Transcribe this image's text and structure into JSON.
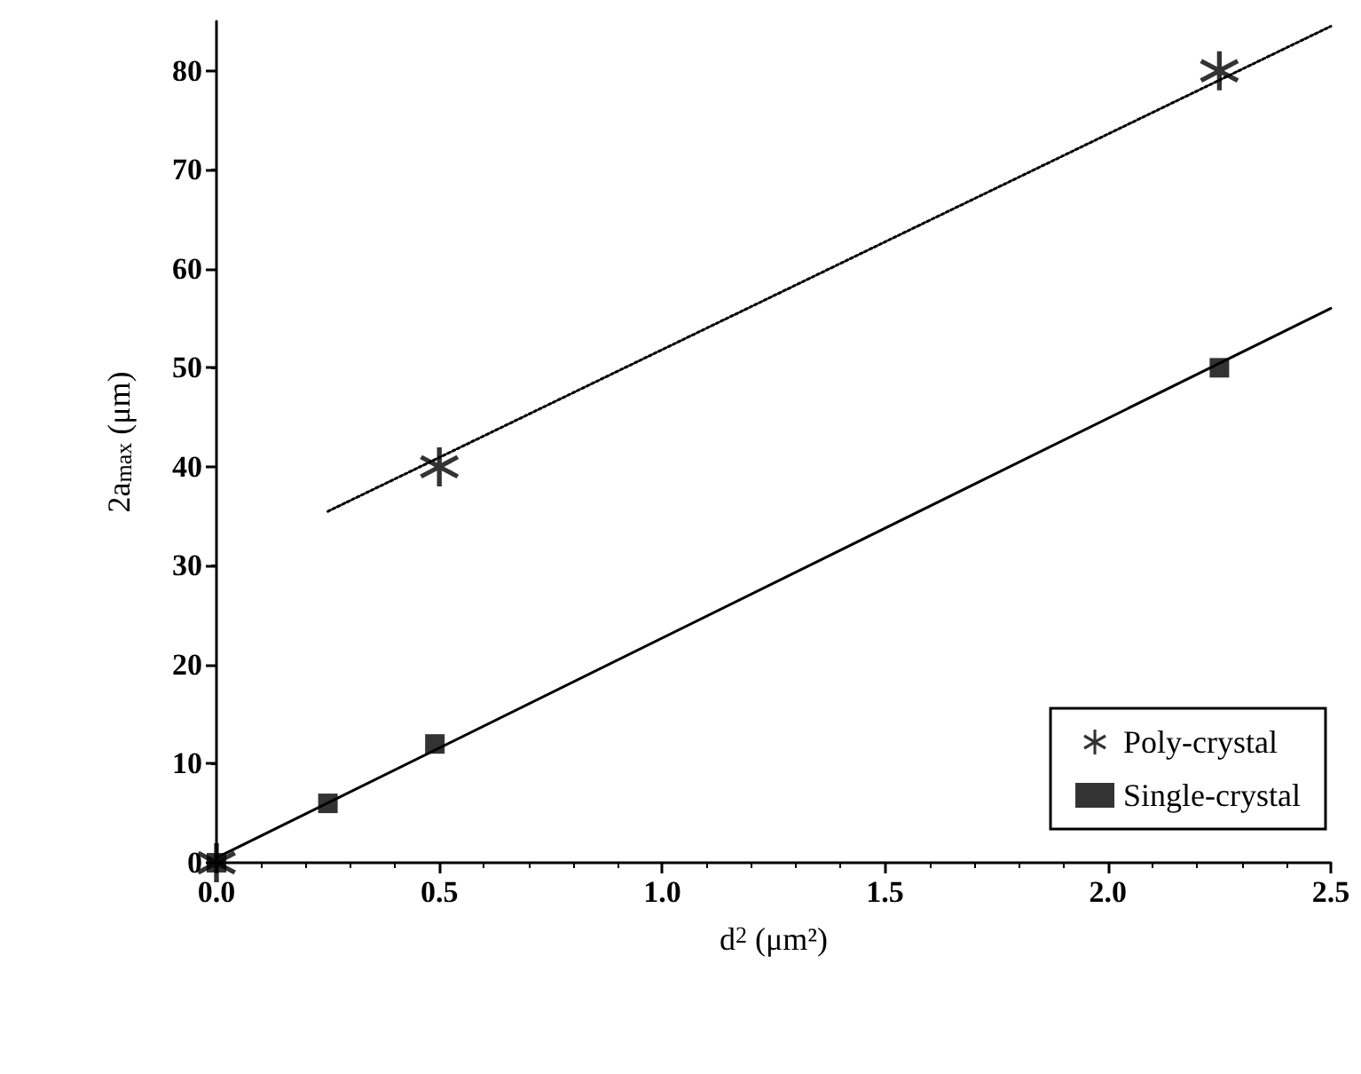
{
  "chart_data": {
    "type": "scatter",
    "xlabel": "d$^{2}$ (μm²)",
    "ylabel": "2a$_{max}$ (μm)",
    "xlim": [
      0,
      2.5
    ],
    "ylim": [
      0,
      85
    ],
    "xticks": [
      {
        "value": 0,
        "label": "0.0"
      },
      0.5,
      {
        "value": 1,
        "label": "1.0"
      },
      1.5,
      {
        "value": 2,
        "label": "2.0"
      },
      2.5
    ],
    "yticks": [
      0,
      10,
      20,
      30,
      40,
      50,
      60,
      70,
      80
    ],
    "grid": false,
    "legend": "bottom right",
    "series": [
      {
        "name": "Poly-crystal",
        "color": "#000000",
        "marker": "star",
        "x": [
          0,
          0.5,
          2.25
        ],
        "values": [
          0,
          40,
          80
        ]
      },
      {
        "name": "Single-crystal",
        "color": "#000000",
        "marker": "square",
        "x": [
          0,
          0.25,
          0.49,
          2.25
        ],
        "values": [
          0,
          6,
          12,
          50
        ]
      },
      {
        "type": "line",
        "color": "#000000",
        "line_style": "dotted",
        "marker": "none",
        "x": [
          0.25,
          2.5
        ],
        "values": [
          35.5,
          84.5
        ]
      },
      {
        "type": "line",
        "color": "#000000",
        "line_style": "solid",
        "marker": "none",
        "x": [
          0,
          2.5
        ],
        "values": [
          0.5,
          56
        ]
      }
    ]
  }
}
